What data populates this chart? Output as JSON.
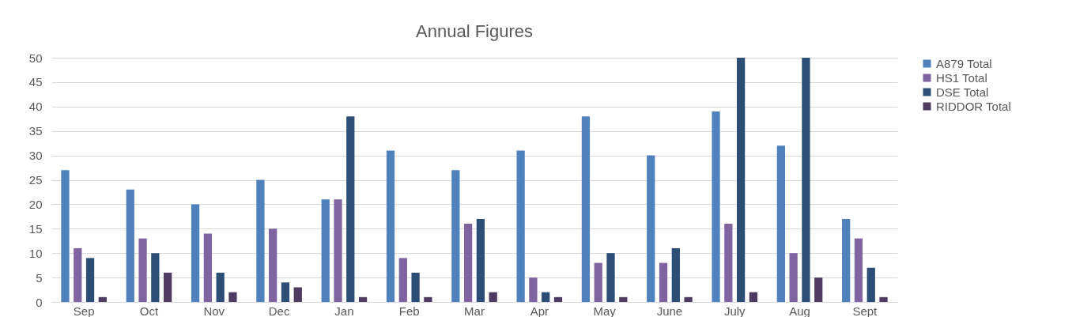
{
  "chart_data": {
    "type": "bar",
    "title": "Annual Figures",
    "categories": [
      "Sep",
      "Oct",
      "Nov",
      "Dec",
      "Jan",
      "Feb",
      "Mar",
      "Apr",
      "May",
      "June",
      "July",
      "Aug",
      "Sept"
    ],
    "series": [
      {
        "name": "A879 Total",
        "color": "#4f81bd",
        "values": [
          27,
          23,
          20,
          25,
          21,
          31,
          27,
          31,
          38,
          30,
          39,
          32,
          17
        ]
      },
      {
        "name": "HS1 Total",
        "color": "#8064a2",
        "values": [
          11,
          13,
          14,
          15,
          21,
          9,
          16,
          5,
          8,
          8,
          16,
          10,
          13
        ]
      },
      {
        "name": "DSE Total",
        "color": "#2c4d75",
        "values": [
          9,
          10,
          6,
          4,
          38,
          6,
          17,
          2,
          10,
          11,
          50,
          50,
          7
        ]
      },
      {
        "name": "RIDDOR Total",
        "color": "#4d3b62",
        "values": [
          1,
          6,
          2,
          3,
          1,
          1,
          2,
          1,
          1,
          1,
          2,
          5,
          1
        ]
      }
    ],
    "ylim": [
      0,
      50
    ],
    "yticks": [
      0,
      5,
      10,
      15,
      20,
      25,
      30,
      35,
      40,
      45,
      50
    ],
    "grid": "y",
    "legend": "right"
  }
}
